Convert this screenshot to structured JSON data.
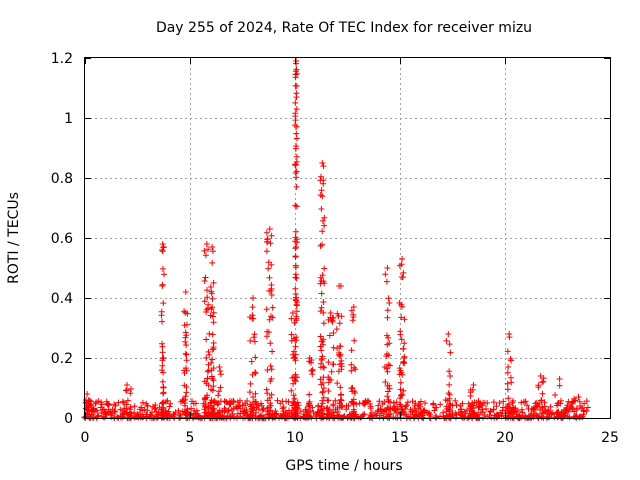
{
  "chart_data": {
    "type": "scatter",
    "title": "Day 255 of 2024, Rate Of TEC Index for receiver mizu",
    "xlabel": "GPS time / hours",
    "ylabel": "ROTI / TECUs",
    "xlim": [
      0,
      25
    ],
    "ylim": [
      0,
      1.2
    ],
    "xticks": [
      0,
      5,
      10,
      15,
      20,
      25
    ],
    "yticks": [
      0,
      0.2,
      0.4,
      0.6,
      0.8,
      1,
      1.2
    ],
    "grid": true,
    "marker": "+",
    "color": "#ff0000",
    "baseline": {
      "x_range": [
        0,
        24
      ],
      "y_range": [
        0.0,
        0.06
      ]
    },
    "clusters": [
      {
        "x": 0.1,
        "x_spread": 0.15,
        "y_max": 0.08
      },
      {
        "x": 2.0,
        "x_spread": 0.25,
        "y_max": 0.11
      },
      {
        "x": 3.7,
        "x_spread": 0.06,
        "y_max": 0.58
      },
      {
        "x": 4.8,
        "x_spread": 0.1,
        "y_max": 0.42
      },
      {
        "x": 5.8,
        "x_spread": 0.12,
        "y_max": 0.58
      },
      {
        "x": 6.05,
        "x_spread": 0.08,
        "y_max": 0.57
      },
      {
        "x": 6.4,
        "x_spread": 0.08,
        "y_max": 0.17
      },
      {
        "x": 8.0,
        "x_spread": 0.15,
        "y_max": 0.4
      },
      {
        "x": 8.8,
        "x_spread": 0.15,
        "y_max": 0.63
      },
      {
        "x": 9.9,
        "x_spread": 0.1,
        "y_max": 0.35
      },
      {
        "x": 10.05,
        "x_spread": 0.05,
        "y_max": 1.19
      },
      {
        "x": 10.7,
        "x_spread": 0.15,
        "y_max": 0.2
      },
      {
        "x": 11.3,
        "x_spread": 0.1,
        "y_max": 0.85
      },
      {
        "x": 11.7,
        "x_spread": 0.15,
        "y_max": 0.35
      },
      {
        "x": 12.1,
        "x_spread": 0.12,
        "y_max": 0.44
      },
      {
        "x": 12.8,
        "x_spread": 0.12,
        "y_max": 0.37
      },
      {
        "x": 14.4,
        "x_spread": 0.12,
        "y_max": 0.5
      },
      {
        "x": 15.1,
        "x_spread": 0.12,
        "y_max": 0.53
      },
      {
        "x": 17.3,
        "x_spread": 0.12,
        "y_max": 0.28
      },
      {
        "x": 18.5,
        "x_spread": 0.15,
        "y_max": 0.11
      },
      {
        "x": 20.2,
        "x_spread": 0.1,
        "y_max": 0.28
      },
      {
        "x": 21.7,
        "x_spread": 0.2,
        "y_max": 0.14
      },
      {
        "x": 22.6,
        "x_spread": 0.3,
        "y_max": 0.13
      },
      {
        "x": 23.5,
        "x_spread": 0.3,
        "y_max": 0.07
      }
    ]
  }
}
